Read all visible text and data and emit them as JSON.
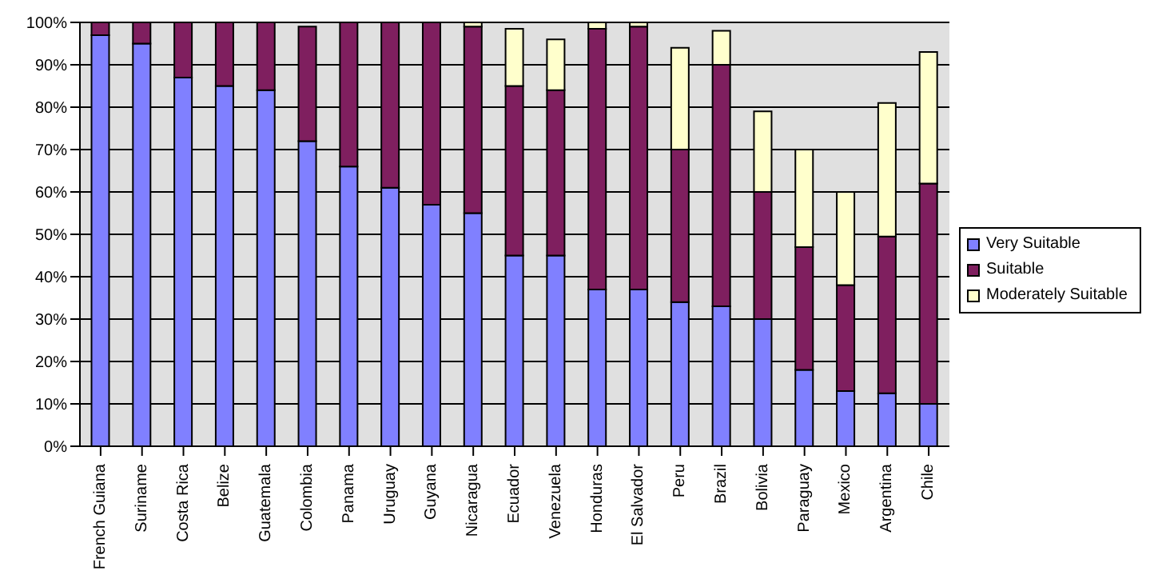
{
  "chart_data": {
    "type": "bar",
    "stacked": true,
    "categories": [
      "French Guiana",
      "Suriname",
      "Costa Rica",
      "Belize",
      "Guatemala",
      "Colombia",
      "Panama",
      "Uruguay",
      "Guyana",
      "Nicaragua",
      "Ecuador",
      "Venezuela",
      "Honduras",
      "El Salvador",
      "Peru",
      "Brazil",
      "Bolivia",
      "Paraguay",
      "Mexico",
      "Argentina",
      "Chile"
    ],
    "series": [
      {
        "name": "Very Suitable",
        "color": "#8080ff",
        "values": [
          97,
          95,
          87,
          85,
          84,
          72,
          66,
          61,
          57,
          55,
          45,
          45,
          37,
          37,
          34,
          33,
          30,
          18,
          13,
          12.5,
          10
        ]
      },
      {
        "name": "Suitable",
        "color": "#7f1f5f",
        "values": [
          3,
          5,
          13,
          15,
          16,
          27,
          34,
          39,
          43,
          44,
          40,
          39,
          61.5,
          62,
          36,
          57,
          30,
          29,
          25,
          37,
          52
        ]
      },
      {
        "name": "Moderately Suitable",
        "color": "#ffffcc",
        "values": [
          0,
          0,
          0,
          0,
          0,
          0,
          0,
          0,
          0,
          1,
          13.5,
          12,
          1.5,
          1,
          24,
          8,
          19,
          23,
          22,
          31.5,
          31
        ]
      }
    ],
    "ylim": [
      0,
      100
    ],
    "yticks": [
      {
        "value": 0,
        "label": "0%"
      },
      {
        "value": 10,
        "label": "10%"
      },
      {
        "value": 20,
        "label": "20%"
      },
      {
        "value": 30,
        "label": "30%"
      },
      {
        "value": 40,
        "label": "40%"
      },
      {
        "value": 50,
        "label": "50%"
      },
      {
        "value": 60,
        "label": "60%"
      },
      {
        "value": 70,
        "label": "70%"
      },
      {
        "value": 80,
        "label": "80%"
      },
      {
        "value": 90,
        "label": "90%"
      },
      {
        "value": 100,
        "label": "100%"
      }
    ],
    "grid": "y",
    "legend": "right"
  }
}
